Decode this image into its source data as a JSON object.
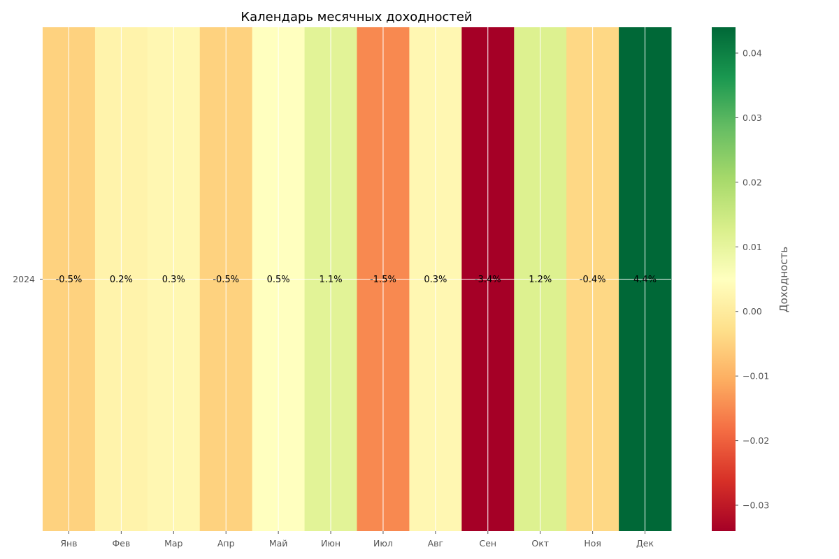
{
  "chart_data": {
    "type": "heatmap",
    "title": "Календарь месячных доходностей",
    "rows": [
      "2024"
    ],
    "columns": [
      "Янв",
      "Фев",
      "Мар",
      "Апр",
      "Май",
      "Июн",
      "Июл",
      "Авг",
      "Сен",
      "Окт",
      "Ноя",
      "Дек"
    ],
    "values": [
      [
        -0.005,
        0.002,
        0.003,
        -0.005,
        0.005,
        0.011,
        -0.015,
        0.003,
        -0.034,
        0.012,
        -0.004,
        0.044
      ]
    ],
    "cell_labels": [
      [
        "-0.5%",
        "0.2%",
        "0.3%",
        "-0.5%",
        "0.5%",
        "1.1%",
        "-1.5%",
        "0.3%",
        "-3.4%",
        "1.2%",
        "-0.4%",
        "4.4%"
      ]
    ],
    "colorbar": {
      "label": "Доходность",
      "colormap": "RdYlGn",
      "range": [
        -0.034,
        0.044
      ],
      "ticks": [
        -0.03,
        -0.02,
        -0.01,
        0.0,
        0.01,
        0.02,
        0.03,
        0.04
      ],
      "tick_labels": [
        "−0.03",
        "−0.02",
        "−0.01",
        "0.00",
        "0.01",
        "0.02",
        "0.03",
        "0.04"
      ]
    },
    "grid": true,
    "grid_color": "#ffffff"
  }
}
